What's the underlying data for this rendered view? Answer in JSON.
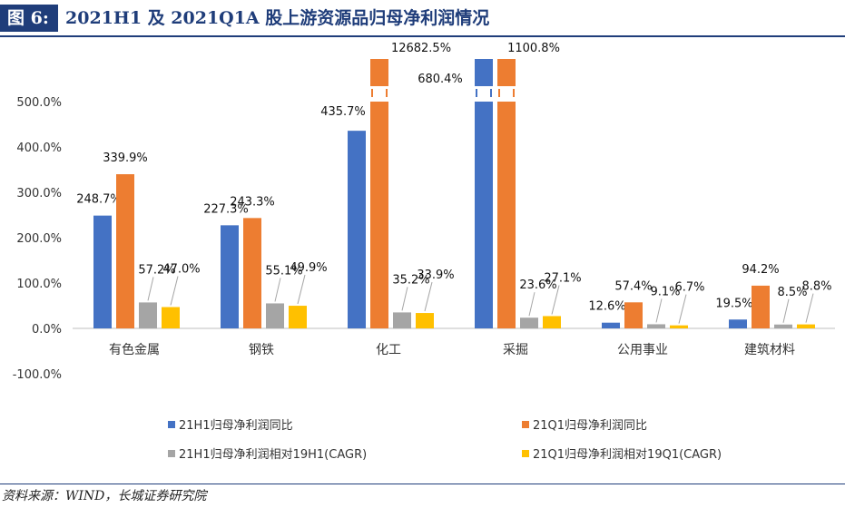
{
  "figure": {
    "label": "图 6:",
    "title": "2021H1 及 2021Q1A 股上游资源品归母净利润情况",
    "source": "资料来源：WIND，长城证券研究院"
  },
  "colors": {
    "s1": "#4472c4",
    "s2": "#ed7d31",
    "s3": "#a5a5a5",
    "s4": "#ffc000",
    "header": "#1f3d7a"
  },
  "chart_data": {
    "type": "bar",
    "categories": [
      "有色金属",
      "钢铁",
      "化工",
      "采掘",
      "公用事业",
      "建筑材料"
    ],
    "series": [
      {
        "name": "21H1归母净利润同比",
        "values": [
          248.7,
          227.3,
          435.7,
          680.4,
          12.6,
          19.5
        ],
        "labels": [
          "248.7%",
          "227.3%",
          "435.7%",
          "680.4%",
          "12.6%",
          "19.5%"
        ]
      },
      {
        "name": "21Q1归母净利润同比",
        "values": [
          339.9,
          243.3,
          12682.5,
          1100.8,
          57.4,
          94.2
        ],
        "labels": [
          "339.9%",
          "243.3%",
          "12682.5%",
          "1100.8%",
          "57.4%",
          "94.2%"
        ]
      },
      {
        "name": "21H1归母净利润相对19H1(CAGR)",
        "values": [
          57.2,
          55.1,
          35.2,
          23.6,
          9.1,
          8.5
        ],
        "labels": [
          "57.2%",
          "55.1%",
          "35.2%",
          "23.6%",
          "9.1%",
          "8.5%"
        ]
      },
      {
        "name": "21Q1归母净利润相对19Q1(CAGR)",
        "values": [
          47.0,
          49.9,
          33.9,
          27.1,
          6.7,
          8.8
        ],
        "labels": [
          "47.0%",
          "49.9%",
          "33.9%",
          "27.1%",
          "6.7%",
          "8.8%"
        ]
      }
    ],
    "yticks": [
      "500.0%",
      "400.0%",
      "300.0%",
      "200.0%",
      "100.0%",
      "0.0%",
      "-100.0%"
    ],
    "ytick_values": [
      500,
      400,
      300,
      200,
      100,
      0,
      -100
    ],
    "ylim": [
      -100,
      500
    ],
    "axis_break": "bars exceeding 500% are drawn broken",
    "legend_position": "bottom",
    "title": "2021H1 及 2021Q1A 股上游资源品归母净利润情况"
  }
}
